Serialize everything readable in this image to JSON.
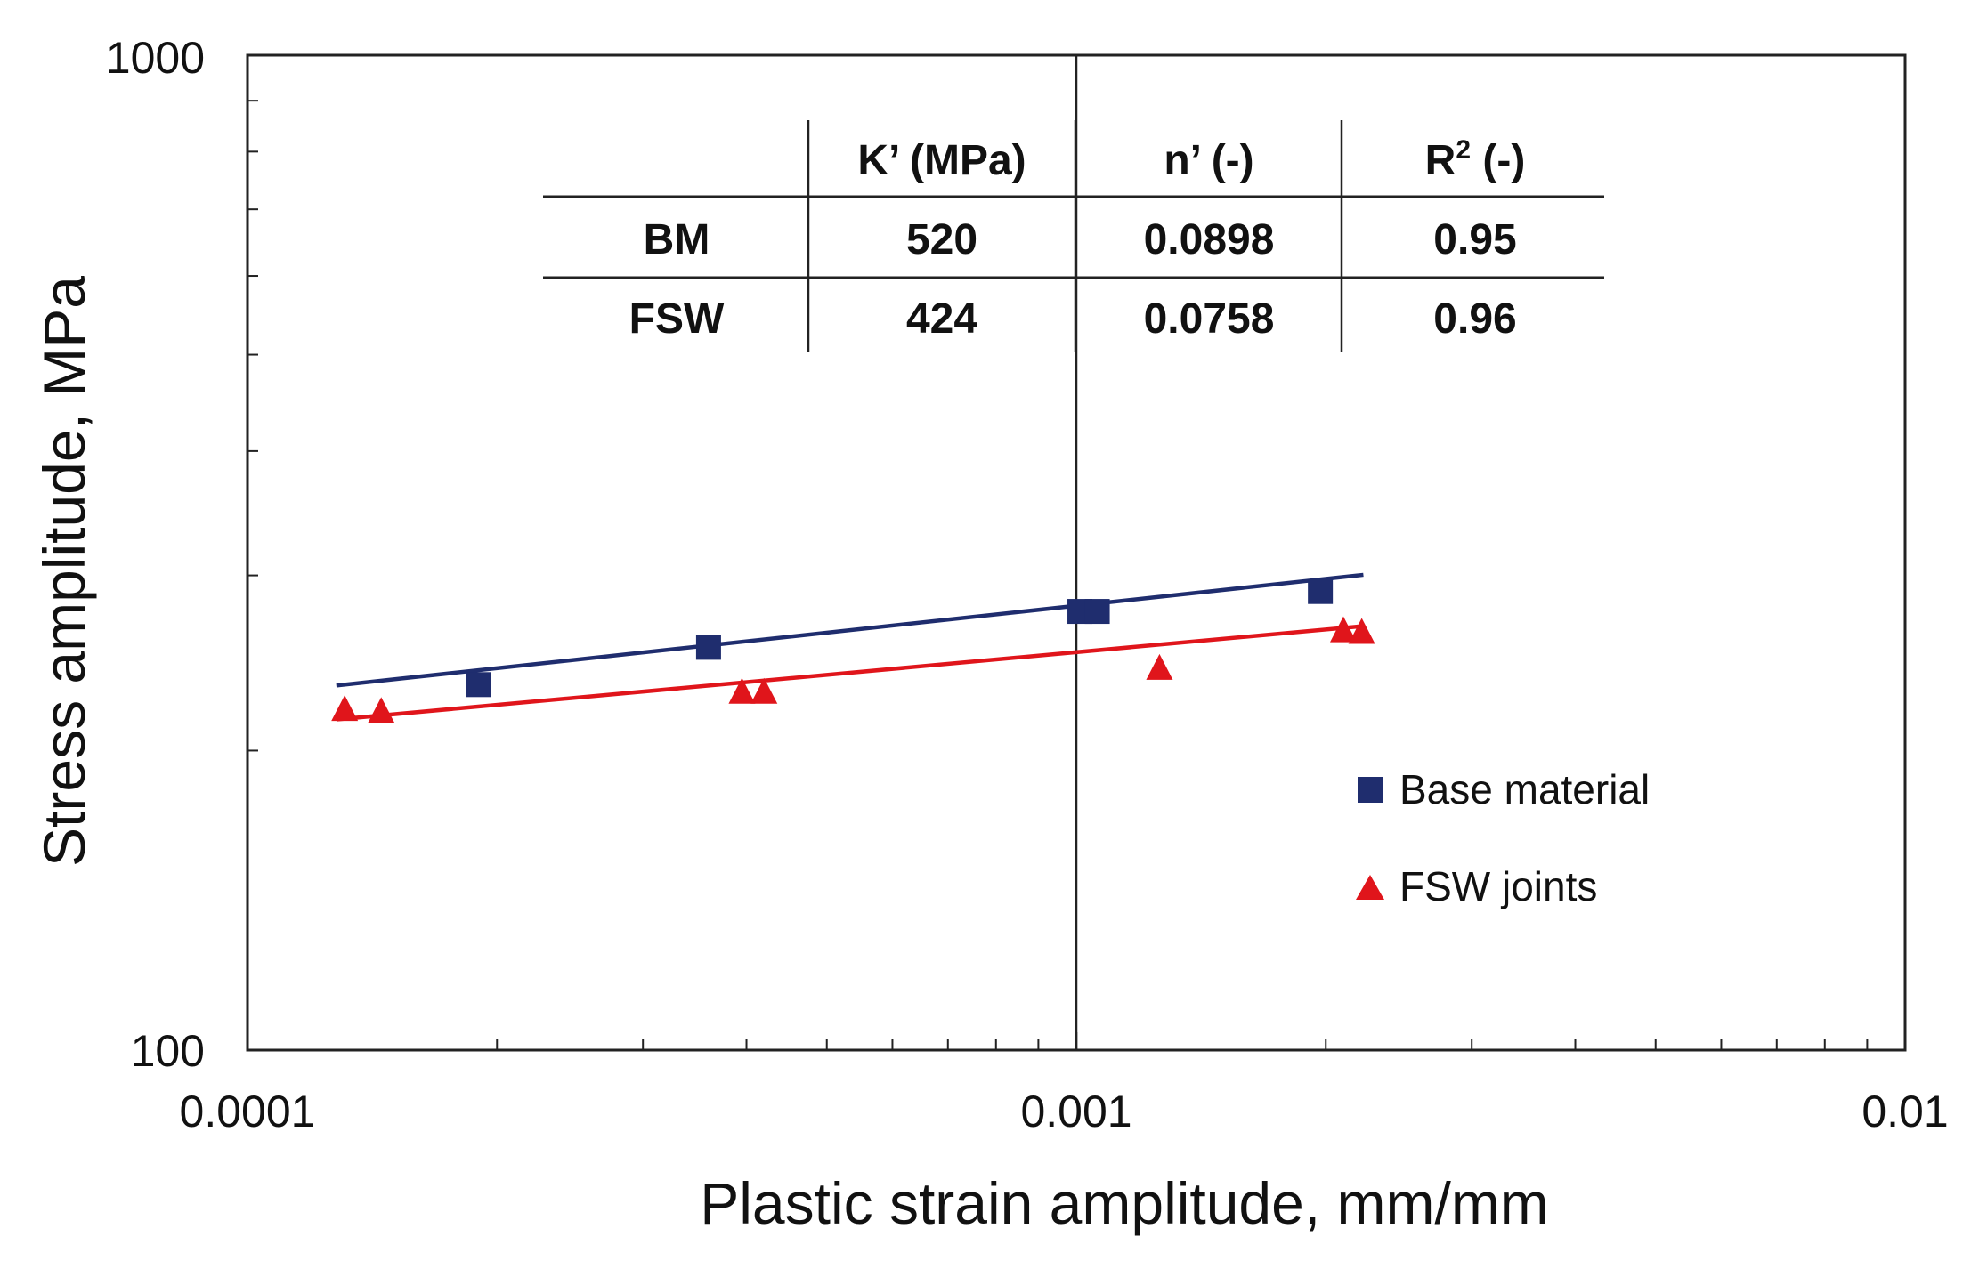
{
  "chart_data": {
    "type": "scatter",
    "title": "",
    "xlabel": "Plastic strain amplitude, mm/mm",
    "ylabel": "Stress amplitude, MPa",
    "xscale": "log",
    "yscale": "log",
    "xlim": [
      0.0001,
      0.01
    ],
    "ylim": [
      100,
      1000
    ],
    "x_tick_labels": [
      "0.0001",
      "0.001",
      "0.01"
    ],
    "y_tick_labels": [
      "100",
      "1000"
    ],
    "series": [
      {
        "name": "Base material",
        "marker": "square",
        "color": "#1f2d6e",
        "points": [
          [
            0.00019,
            233
          ],
          [
            0.00036,
            254
          ],
          [
            0.00101,
            276
          ],
          [
            0.00106,
            276
          ],
          [
            0.00197,
            289
          ]
        ],
        "fit": {
          "K": 520,
          "n": 0.0898,
          "x_range": [
            0.000128,
            0.00222
          ]
        }
      },
      {
        "name": "FSW joints",
        "marker": "triangle",
        "color": "#e0151b",
        "points": [
          [
            0.000131,
            220
          ],
          [
            0.000145,
            219
          ],
          [
            0.000395,
            229
          ],
          [
            0.00042,
            229
          ],
          [
            0.00126,
            242
          ],
          [
            0.0021,
            264
          ],
          [
            0.00221,
            263
          ]
        ],
        "fit": {
          "K": 424,
          "n": 0.0758,
          "x_range": [
            0.000128,
            0.00222
          ]
        }
      }
    ],
    "legend": {
      "position": "right-middle",
      "entries": [
        "Base material",
        "FSW joints"
      ]
    },
    "grid": false,
    "vertical_reference_line_x": 0.001,
    "parameter_table": {
      "headers": [
        "",
        "K’ (MPa)",
        "n’ (-)",
        "R",
        "2",
        " (-)"
      ],
      "rows": [
        [
          "BM",
          "520",
          "0.0898",
          "0.95"
        ],
        [
          "FSW",
          "424",
          "0.0758",
          "0.96"
        ]
      ]
    }
  }
}
